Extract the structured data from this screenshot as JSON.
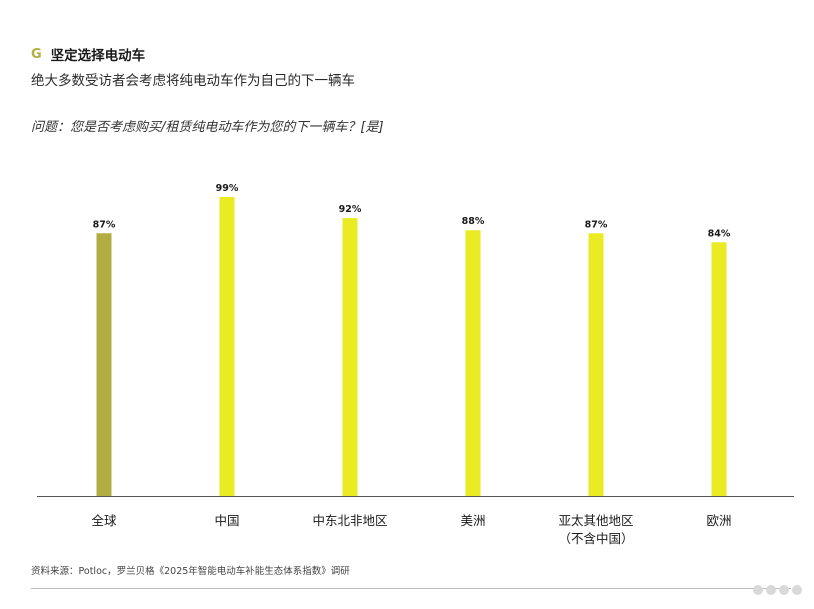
{
  "header": {
    "letter": "G",
    "title": "坚定选择电动车",
    "subtitle": "绝大多数受访者会考虑将纯电动车作为自己的下一辆车"
  },
  "question": "问题：您是否考虑购买/租赁纯电动车作为您的下一辆车？[是]",
  "source": "资料来源：Potloc，罗兰贝格《2025年智能电动车补能生态体系指数》调研",
  "colors": {
    "highlight": "#b2ad42",
    "bar": "#eaeb23",
    "axis": "#555555"
  },
  "chart_data": {
    "type": "bar",
    "categories": [
      "全球",
      "中国",
      "中东北非地区",
      "美洲",
      "亚太其他地区\n（不含中国）",
      "欧洲"
    ],
    "values": [
      87,
      99,
      92,
      88,
      87,
      84
    ],
    "value_labels": [
      "87%",
      "99%",
      "92%",
      "88%",
      "87%",
      "84%"
    ],
    "ylim": [
      0,
      100
    ],
    "grid": false
  }
}
